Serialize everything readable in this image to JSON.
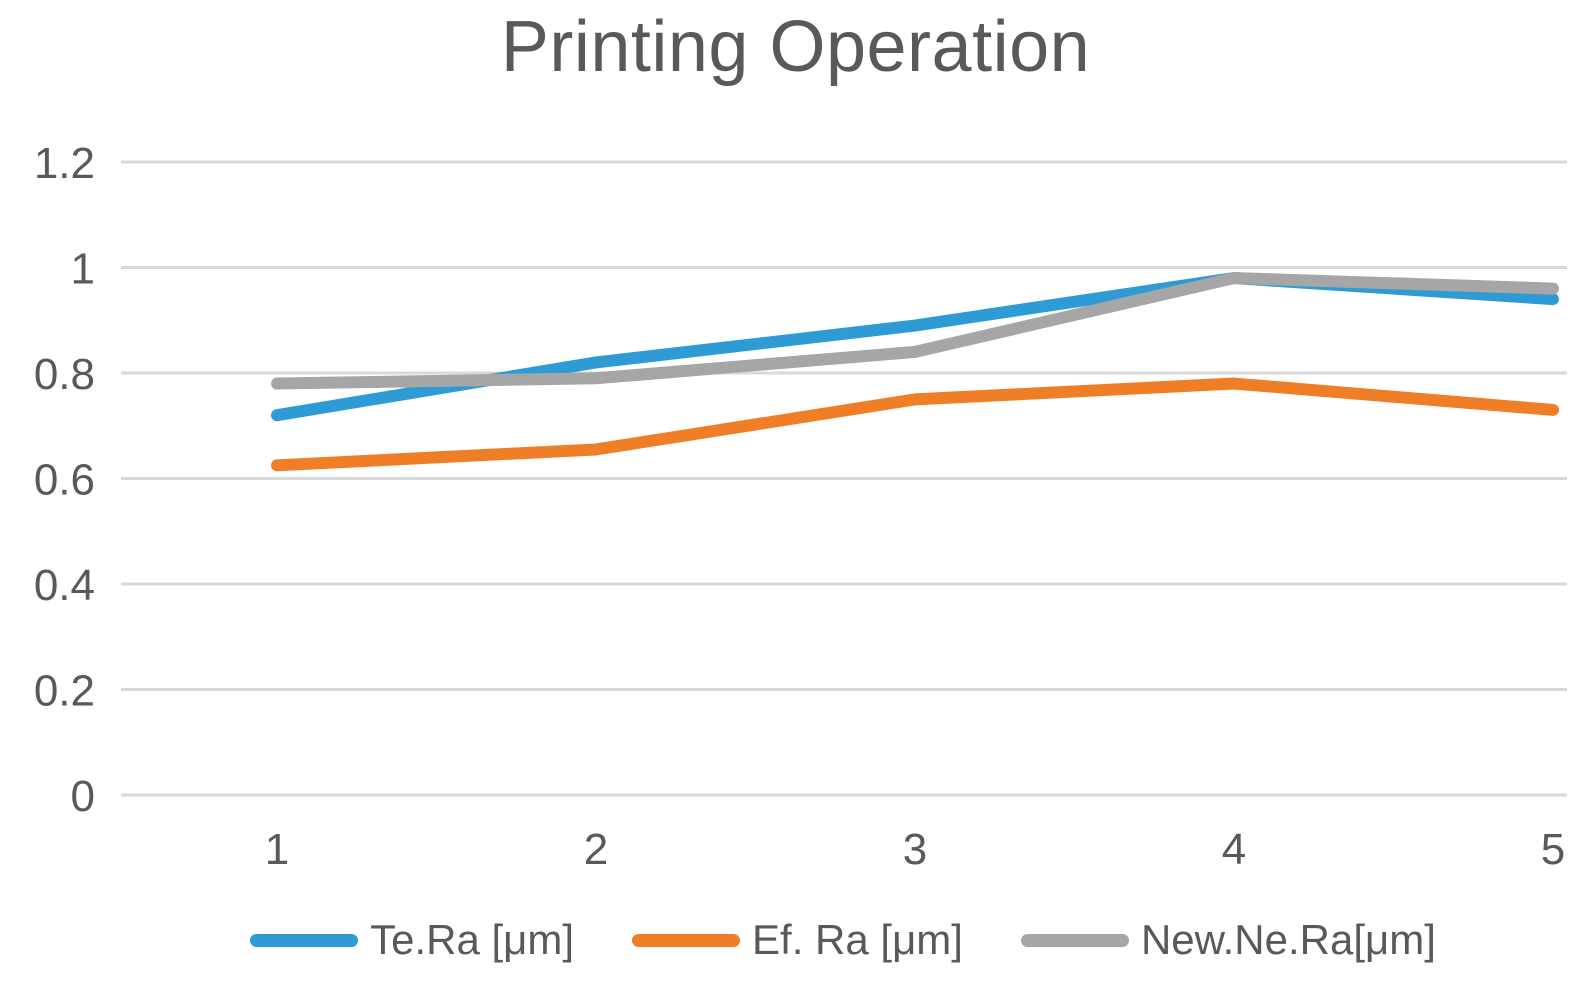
{
  "title": "Printing Operation",
  "colors": {
    "text": "#595959",
    "tick_text": "#595959",
    "gridline": "#D9D9D9",
    "background": "#FFFFFF",
    "series_blue": "#2E9BD5",
    "series_orange": "#F07E27",
    "series_gray": "#A6A6A6"
  },
  "chart_data": {
    "type": "line",
    "title": "Printing Operation",
    "x": [
      1,
      2,
      3,
      4,
      5
    ],
    "series": [
      {
        "name": "Te.Ra [μm]",
        "color": "#2E9BD5",
        "values": [
          0.72,
          0.82,
          0.89,
          0.98,
          0.94
        ]
      },
      {
        "name": "Ef. Ra [μm]",
        "color": "#F07E27",
        "values": [
          0.625,
          0.655,
          0.75,
          0.78,
          0.73
        ]
      },
      {
        "name": "New.Ne.Ra[μm]",
        "color": "#A6A6A6",
        "values": [
          0.78,
          0.79,
          0.84,
          0.98,
          0.96
        ]
      }
    ],
    "yticks": [
      0,
      0.2,
      0.4,
      0.6,
      0.8,
      1,
      1.2
    ],
    "ylim": [
      0,
      1.2
    ],
    "xlabel": "",
    "ylabel": "",
    "grid": true,
    "legend_position": "bottom"
  }
}
